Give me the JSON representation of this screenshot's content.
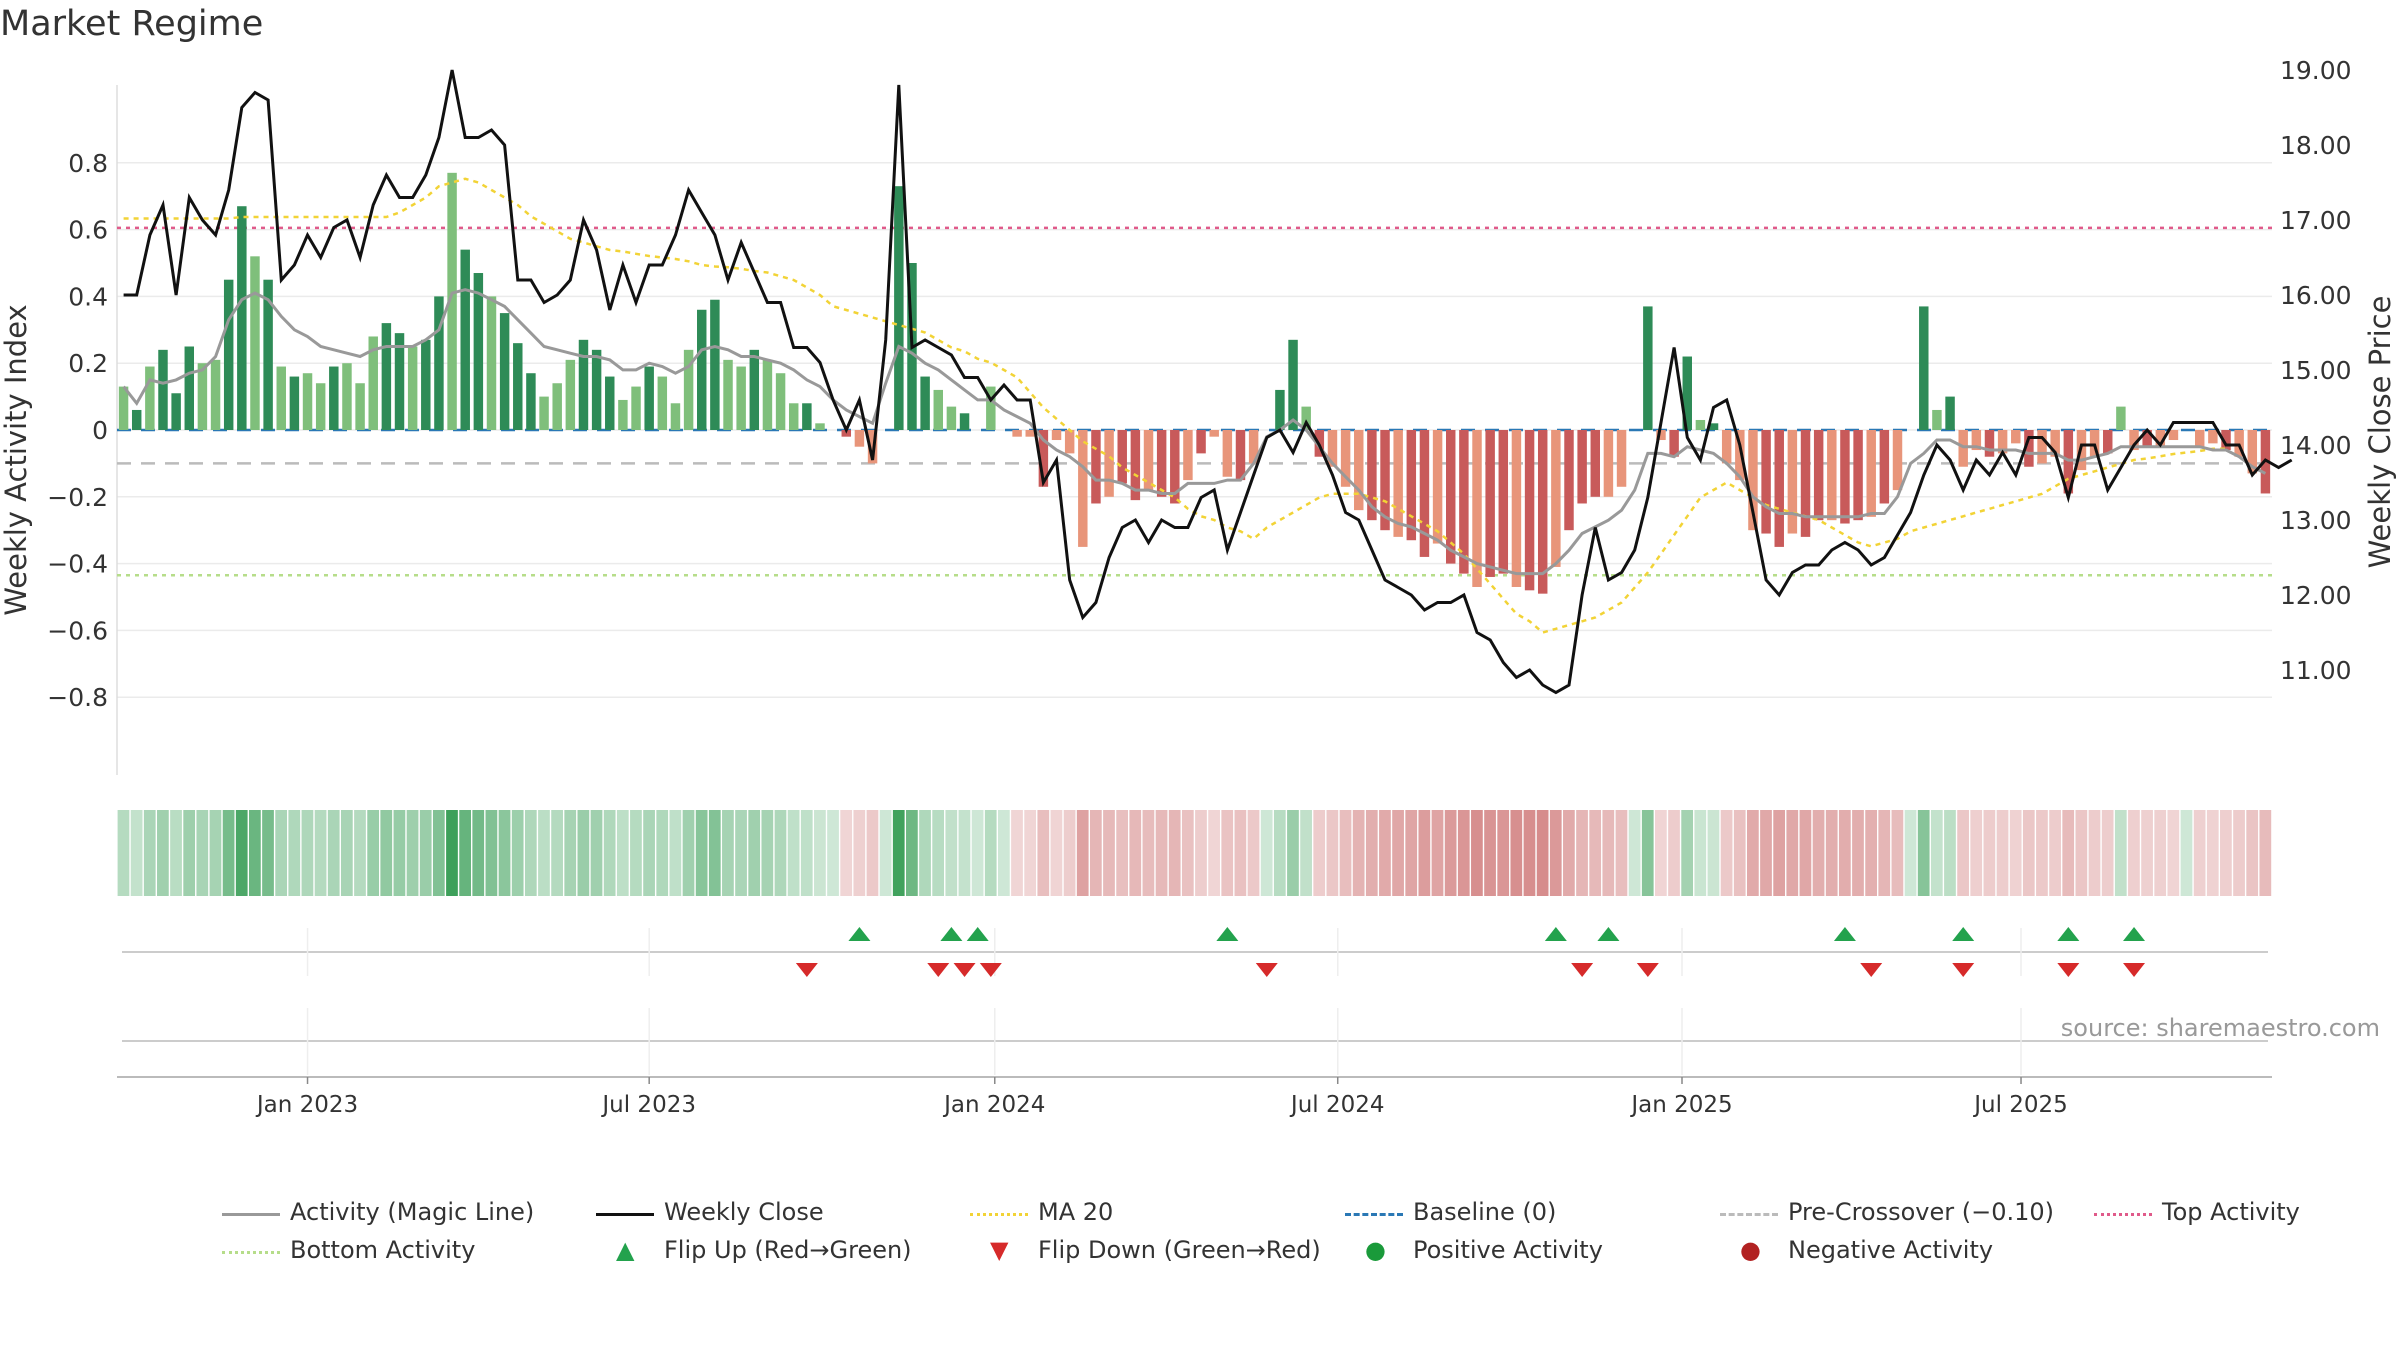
{
  "title": "Market Regime",
  "source": "source: sharemaestro.com",
  "colors": {
    "green_dark": "#2e8b57",
    "green_light": "#7fbf7b",
    "red_dark": "#c85a5a",
    "red_light": "#e8957a",
    "magic": "#999999",
    "close": "#111111",
    "ma": "#f2d336",
    "baseline": "#2a78b5",
    "pre": "#bbbbbb",
    "top": "#e05a8a",
    "bottom": "#b6dd8a",
    "flip_up": "#23a24d",
    "flip_down": "#d62a2a",
    "pos": "#1a9a3a",
    "neg": "#b22222"
  },
  "chart_data": {
    "type": "bar",
    "ylabel_left": "Weekly Activity Index",
    "ylabel_right": "Weekly Close Price",
    "ylim_left": [
      -0.84,
      0.8
    ],
    "ylim_right": [
      10.3,
      19.3
    ],
    "yticks_left": [
      "0.8",
      "0.6",
      "0.4",
      "0.2",
      "0",
      "−0.2",
      "−0.4",
      "−0.6",
      "−0.8"
    ],
    "yticks_right": [
      "19.00",
      "18.00",
      "17.00",
      "16.00",
      "15.00",
      "14.00",
      "13.00",
      "12.00",
      "11.00"
    ],
    "xticks": [
      "Jan 2023",
      "Jul 2023",
      "Jan 2024",
      "Jul 2024",
      "Jan 2025",
      "Jul 2025"
    ],
    "xtick_weeks": [
      14,
      40,
      66.3,
      92.4,
      118.6,
      144.4
    ],
    "lines": {
      "baseline": 0,
      "pre_crossover": -0.1,
      "top_activity": 0.605,
      "bottom_activity": -0.435
    },
    "activity": [
      0.13,
      0.06,
      0.19,
      0.24,
      0.11,
      0.25,
      0.2,
      0.21,
      0.45,
      0.67,
      0.52,
      0.45,
      0.19,
      0.16,
      0.17,
      0.14,
      0.19,
      0.2,
      0.14,
      0.28,
      0.32,
      0.29,
      0.25,
      0.27,
      0.4,
      0.77,
      0.54,
      0.47,
      0.4,
      0.35,
      0.26,
      0.17,
      0.1,
      0.14,
      0.21,
      0.27,
      0.24,
      0.16,
      0.09,
      0.13,
      0.19,
      0.16,
      0.08,
      0.24,
      0.36,
      0.39,
      0.21,
      0.19,
      0.24,
      0.21,
      0.17,
      0.08,
      0.08,
      0.02,
      0.0,
      -0.02,
      -0.05,
      -0.1,
      0.0,
      0.73,
      0.5,
      0.16,
      0.12,
      0.07,
      0.05,
      0.0,
      0.13,
      0.0,
      -0.02,
      -0.02,
      -0.17,
      -0.03,
      -0.07,
      -0.35,
      -0.22,
      -0.2,
      -0.16,
      -0.21,
      -0.18,
      -0.2,
      -0.22,
      -0.15,
      -0.07,
      -0.02,
      -0.14,
      -0.15,
      -0.1,
      0.0,
      0.12,
      0.27,
      0.07,
      -0.08,
      -0.11,
      -0.17,
      -0.24,
      -0.27,
      -0.3,
      -0.32,
      -0.33,
      -0.38,
      -0.34,
      -0.4,
      -0.43,
      -0.47,
      -0.44,
      -0.43,
      -0.47,
      -0.48,
      -0.49,
      -0.41,
      -0.3,
      -0.22,
      -0.2,
      -0.2,
      -0.17,
      0.0,
      0.37,
      -0.03,
      -0.08,
      0.22,
      0.03,
      0.02,
      -0.1,
      -0.15,
      -0.3,
      -0.31,
      -0.35,
      -0.31,
      -0.32,
      -0.27,
      -0.27,
      -0.28,
      -0.27,
      -0.26,
      -0.22,
      -0.18,
      0.0,
      0.37,
      0.06,
      0.1,
      -0.11,
      -0.06,
      -0.08,
      -0.07,
      -0.04,
      -0.11,
      -0.1,
      -0.08,
      -0.19,
      -0.12,
      -0.08,
      -0.07,
      0.07,
      -0.06,
      -0.05,
      -0.05,
      -0.03,
      0.0,
      -0.05,
      -0.04,
      -0.06,
      -0.08,
      -0.13,
      -0.19
    ],
    "magic": [
      0.13,
      0.08,
      0.15,
      0.14,
      0.15,
      0.17,
      0.18,
      0.22,
      0.33,
      0.39,
      0.41,
      0.39,
      0.34,
      0.3,
      0.28,
      0.25,
      0.24,
      0.23,
      0.22,
      0.24,
      0.25,
      0.25,
      0.25,
      0.27,
      0.3,
      0.41,
      0.42,
      0.41,
      0.39,
      0.37,
      0.33,
      0.29,
      0.25,
      0.24,
      0.23,
      0.22,
      0.22,
      0.21,
      0.18,
      0.18,
      0.2,
      0.19,
      0.17,
      0.19,
      0.24,
      0.25,
      0.24,
      0.22,
      0.22,
      0.21,
      0.2,
      0.18,
      0.15,
      0.13,
      0.09,
      0.06,
      0.04,
      0.02,
      0.14,
      0.25,
      0.23,
      0.2,
      0.18,
      0.15,
      0.12,
      0.09,
      0.09,
      0.06,
      0.04,
      0.02,
      -0.03,
      -0.06,
      -0.08,
      -0.11,
      -0.15,
      -0.15,
      -0.16,
      -0.18,
      -0.18,
      -0.19,
      -0.19,
      -0.16,
      -0.16,
      -0.16,
      -0.15,
      -0.15,
      -0.1,
      -0.02,
      0.0,
      0.03,
      0.0,
      -0.05,
      -0.1,
      -0.14,
      -0.18,
      -0.23,
      -0.26,
      -0.28,
      -0.29,
      -0.31,
      -0.33,
      -0.36,
      -0.38,
      -0.4,
      -0.41,
      -0.42,
      -0.43,
      -0.43,
      -0.43,
      -0.4,
      -0.36,
      -0.31,
      -0.29,
      -0.27,
      -0.24,
      -0.18,
      -0.07,
      -0.07,
      -0.08,
      -0.05,
      -0.06,
      -0.07,
      -0.1,
      -0.14,
      -0.2,
      -0.23,
      -0.25,
      -0.25,
      -0.26,
      -0.26,
      -0.26,
      -0.26,
      -0.26,
      -0.25,
      -0.25,
      -0.2,
      -0.1,
      -0.07,
      -0.03,
      -0.03,
      -0.05,
      -0.05,
      -0.06,
      -0.06,
      -0.06,
      -0.07,
      -0.07,
      -0.07,
      -0.09,
      -0.09,
      -0.08,
      -0.07,
      -0.05,
      -0.05,
      -0.05,
      -0.05,
      -0.05,
      -0.05,
      -0.05,
      -0.06,
      -0.06,
      -0.08,
      -0.11,
      -0.13
    ],
    "close": [
      16.0,
      16.0,
      16.8,
      17.2,
      16.0,
      17.3,
      17.0,
      16.8,
      17.4,
      18.5,
      18.7,
      18.6,
      16.2,
      16.4,
      16.8,
      16.5,
      16.9,
      17.0,
      16.5,
      17.2,
      17.6,
      17.3,
      17.3,
      17.6,
      18.1,
      19.0,
      18.1,
      18.1,
      18.2,
      18.0,
      16.2,
      16.2,
      15.9,
      16.0,
      16.2,
      17.0,
      16.6,
      15.8,
      16.4,
      15.9,
      16.4,
      16.4,
      16.8,
      17.4,
      17.1,
      16.8,
      16.2,
      16.7,
      16.3,
      15.9,
      15.9,
      15.3,
      15.3,
      15.1,
      14.6,
      14.2,
      14.6,
      13.8,
      15.4,
      18.8,
      15.3,
      15.4,
      15.3,
      15.2,
      14.9,
      14.9,
      14.6,
      14.8,
      14.6,
      14.6,
      13.5,
      13.8,
      12.2,
      11.7,
      11.9,
      12.5,
      12.9,
      13.0,
      12.7,
      13.0,
      12.9,
      12.9,
      13.3,
      13.4,
      12.6,
      13.1,
      13.6,
      14.1,
      14.2,
      13.9,
      14.3,
      14.0,
      13.6,
      13.1,
      13.0,
      12.6,
      12.2,
      12.1,
      12.0,
      11.8,
      11.9,
      11.9,
      12.0,
      11.5,
      11.4,
      11.1,
      10.9,
      11.0,
      10.8,
      10.7,
      10.8,
      12.0,
      12.9,
      12.2,
      12.3,
      12.6,
      13.3,
      14.3,
      15.3,
      14.1,
      13.8,
      14.5,
      14.6,
      14.0,
      13.1,
      12.2,
      12.0,
      12.3,
      12.4,
      12.4,
      12.6,
      12.7,
      12.6,
      12.4,
      12.5,
      12.8,
      13.1,
      13.6,
      14.0,
      13.8,
      13.4,
      13.8,
      13.6,
      13.9,
      13.6,
      14.1,
      14.1,
      13.9,
      13.3,
      14.0,
      14.0,
      13.4,
      13.7,
      14.0,
      14.2,
      14.0,
      14.3,
      14.3,
      14.3,
      14.3,
      14.0,
      14.0,
      13.6,
      13.8,
      13.7,
      13.8
    ],
    "ma20": [
      17.02,
      17.02,
      17.02,
      17.02,
      17.02,
      17.02,
      17.02,
      17.02,
      17.02,
      17.04,
      17.04,
      17.04,
      17.04,
      17.04,
      17.04,
      17.04,
      17.04,
      17.04,
      17.04,
      17.04,
      17.04,
      17.1,
      17.2,
      17.3,
      17.45,
      17.5,
      17.55,
      17.5,
      17.4,
      17.3,
      17.2,
      17.05,
      16.95,
      16.85,
      16.75,
      16.7,
      16.65,
      16.6,
      16.58,
      16.55,
      16.52,
      16.5,
      16.48,
      16.45,
      16.4,
      16.38,
      16.37,
      16.35,
      16.32,
      16.3,
      16.25,
      16.2,
      16.1,
      16.0,
      15.85,
      15.8,
      15.75,
      15.7,
      15.65,
      15.6,
      15.55,
      15.5,
      15.4,
      15.3,
      15.25,
      15.15,
      15.1,
      15.0,
      14.9,
      14.7,
      14.5,
      14.35,
      14.2,
      14.05,
      13.95,
      13.85,
      13.7,
      13.6,
      13.5,
      13.4,
      13.3,
      13.15,
      13.05,
      13.0,
      12.9,
      12.85,
      12.75,
      12.9,
      13.0,
      13.1,
      13.2,
      13.3,
      13.35,
      13.35,
      13.35,
      13.3,
      13.25,
      13.15,
      13.05,
      12.95,
      12.85,
      12.7,
      12.55,
      12.35,
      12.15,
      11.95,
      11.75,
      11.65,
      11.5,
      11.55,
      11.6,
      11.65,
      11.7,
      11.8,
      11.9,
      12.1,
      12.3,
      12.55,
      12.8,
      13.05,
      13.3,
      13.4,
      13.5,
      13.4,
      13.3,
      13.2,
      13.15,
      13.1,
      13.05,
      13.0,
      12.9,
      12.8,
      12.7,
      12.65,
      12.7,
      12.75,
      12.85,
      12.9,
      12.95,
      13.0,
      13.05,
      13.1,
      13.15,
      13.2,
      13.25,
      13.3,
      13.35,
      13.45,
      13.55,
      13.6,
      13.65,
      13.7,
      13.75,
      13.8,
      13.82,
      13.85,
      13.88,
      13.9,
      13.92,
      13.95,
      13.95
    ],
    "flip_up_weeks": [
      56,
      63,
      65,
      84,
      109,
      113,
      131,
      140,
      148,
      153
    ],
    "flip_down_weeks": [
      52,
      62,
      64,
      66,
      87,
      111,
      116,
      133,
      140,
      148,
      153
    ],
    "legend": [
      {
        "label": "Activity (Magic Line)"
      },
      {
        "label": "Weekly Close"
      },
      {
        "label": "MA 20"
      },
      {
        "label": "Baseline (0)"
      },
      {
        "label": "Pre-Crossover (−0.10)"
      },
      {
        "label": "Top Activity"
      },
      {
        "label": "Bottom Activity"
      },
      {
        "label": "Flip Up (Red→Green)"
      },
      {
        "label": "Flip Down (Green→Red)"
      },
      {
        "label": "Positive Activity"
      },
      {
        "label": "Negative Activity"
      }
    ]
  }
}
